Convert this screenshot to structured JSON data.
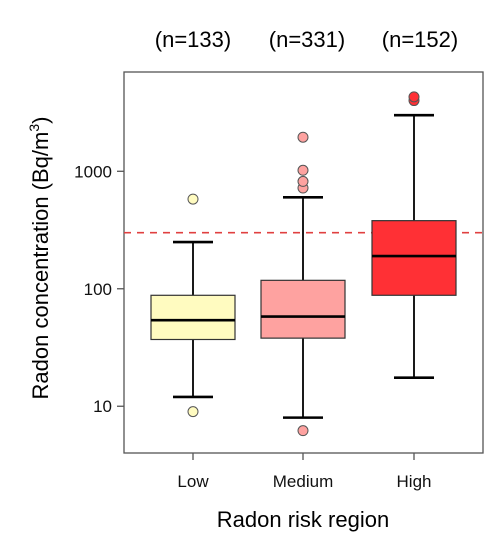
{
  "chart_data": {
    "type": "box",
    "title": "",
    "xlabel": "Radon risk region",
    "ylabel": "Radon concentration (Bq/m³)",
    "ylabel_parts": {
      "main": "Radon concentration (Bq/m",
      "sup": "3",
      "close": ")"
    },
    "yscale": "log",
    "ylim": [
      4,
      7000
    ],
    "yticks": [
      {
        "value": 10,
        "label": "10"
      },
      {
        "value": 100,
        "label": "100"
      },
      {
        "value": 1000,
        "label": "1000"
      }
    ],
    "reference_line": {
      "value": 300,
      "style": "dashed",
      "color": "#e04040"
    },
    "grid": false,
    "categories": [
      "Low",
      "Medium",
      "High"
    ],
    "sample_sizes": [
      "(n=133)",
      "(n=331)",
      "(n=152)"
    ],
    "boxes": [
      {
        "category": "Low",
        "whisker_low": 12,
        "q1": 37,
        "median": 54,
        "q3": 88,
        "whisker_high": 250,
        "outliers": [
          9,
          580
        ],
        "fill": "#fffbc0"
      },
      {
        "category": "Medium",
        "whisker_low": 8,
        "q1": 38,
        "median": 58,
        "q3": 118,
        "whisker_high": 600,
        "outliers": [
          6.2,
          720,
          820,
          1020,
          1950
        ],
        "fill": "#fea2a0"
      },
      {
        "category": "High",
        "whisker_low": 17.5,
        "q1": 88,
        "median": 190,
        "q3": 380,
        "whisker_high": 3000,
        "outliers": [
          4000,
          4300
        ],
        "fill": "#ff3035"
      }
    ]
  }
}
